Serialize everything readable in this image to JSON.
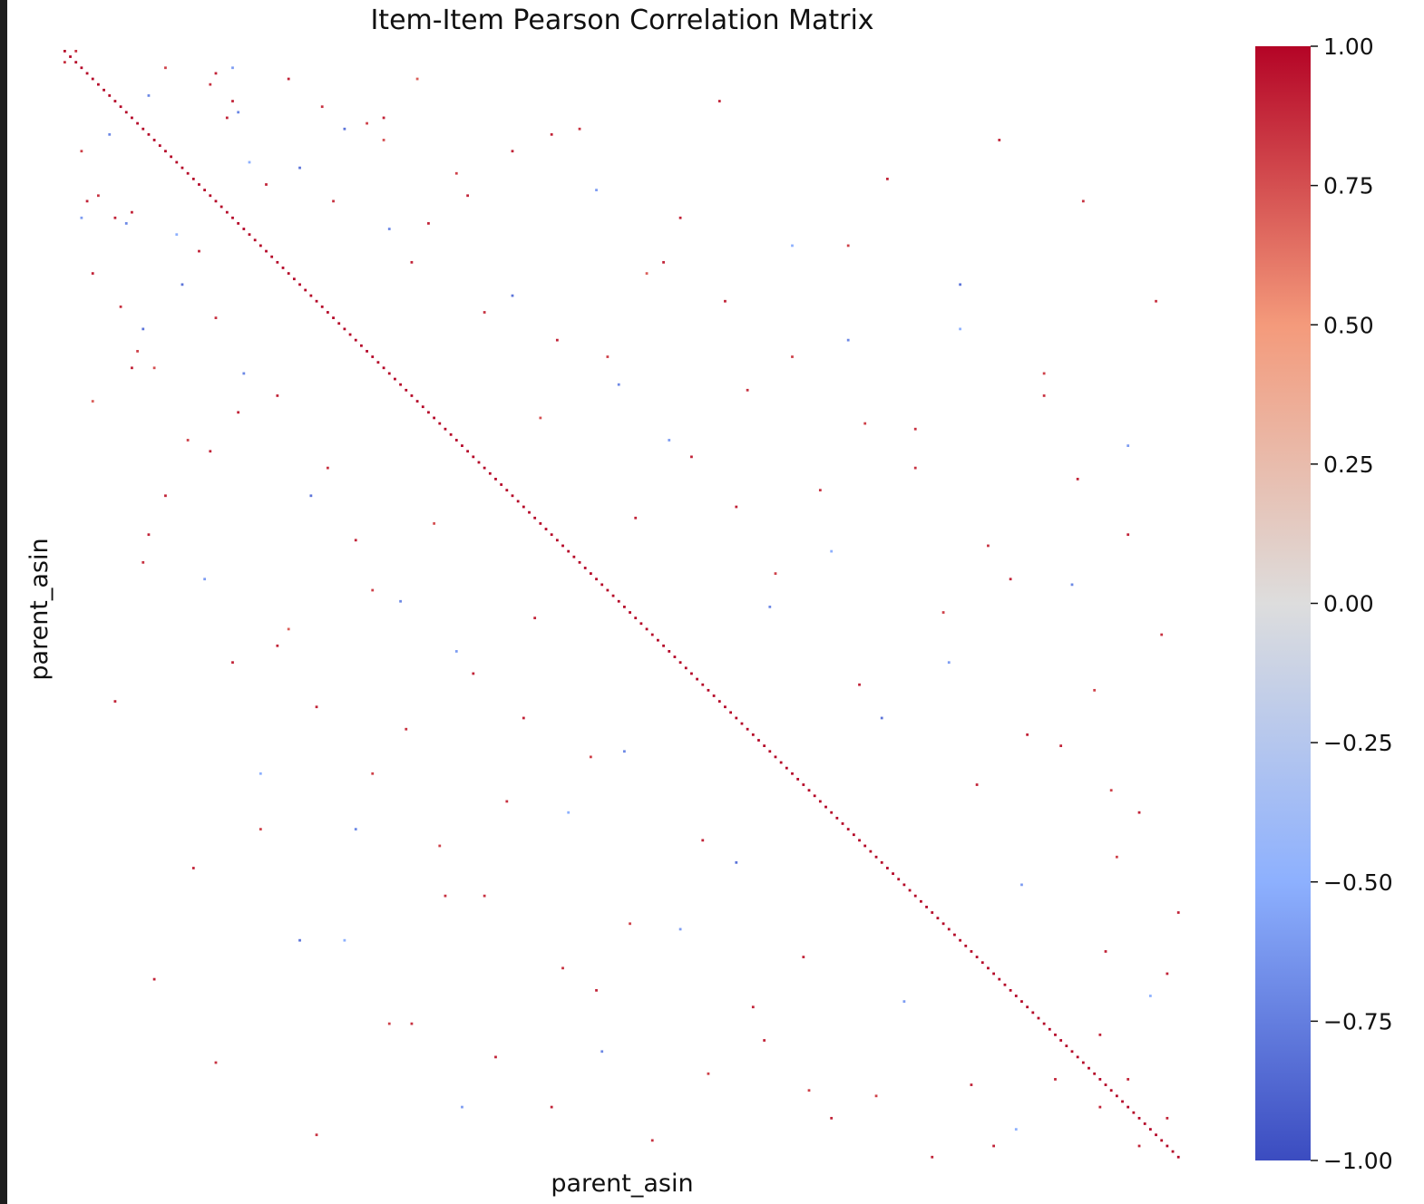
{
  "chart_data": {
    "type": "heatmap",
    "title": "Item-Item Pearson Correlation Matrix",
    "xlabel": "parent_asin",
    "ylabel": "parent_asin",
    "matrix_size": 200,
    "diagonal_value": 1.0,
    "colormap": "coolwarm",
    "colorbar": {
      "min": -1.0,
      "max": 1.0,
      "ticks": [
        1.0,
        0.75,
        0.5,
        0.25,
        0.0,
        -0.25,
        -0.5,
        -0.75,
        -1.0
      ],
      "tick_labels": [
        "1.00",
        "0.75",
        "0.50",
        "0.25",
        "0.00",
        "−0.25",
        "−0.50",
        "−0.75",
        "−1.00"
      ],
      "stops": [
        {
          "v": -1.0,
          "color": "#3b4cc0"
        },
        {
          "v": -0.5,
          "color": "#8db0fe"
        },
        {
          "v": 0.0,
          "color": "#dddddd"
        },
        {
          "v": 0.5,
          "color": "#f49a7b"
        },
        {
          "v": 1.0,
          "color": "#b40426"
        }
      ]
    },
    "nan_color": "#ffffff",
    "offdiag_sample": [
      [
        0,
        2,
        0.85
      ],
      [
        3,
        18,
        0.8
      ],
      [
        3,
        30,
        -0.6
      ],
      [
        5,
        40,
        0.9
      ],
      [
        5,
        63,
        0.7
      ],
      [
        8,
        15,
        -0.7
      ],
      [
        10,
        46,
        0.85
      ],
      [
        12,
        29,
        0.9
      ],
      [
        14,
        50,
        -0.8
      ],
      [
        16,
        57,
        0.75
      ],
      [
        18,
        80,
        0.9
      ],
      [
        20,
        33,
        -0.5
      ],
      [
        22,
        70,
        0.8
      ],
      [
        24,
        36,
        0.9
      ],
      [
        25,
        95,
        -0.6
      ],
      [
        27,
        48,
        0.85
      ],
      [
        30,
        110,
        0.9
      ],
      [
        32,
        58,
        -0.7
      ],
      [
        35,
        140,
        0.8
      ],
      [
        38,
        62,
        0.9
      ],
      [
        40,
        104,
        0.7
      ],
      [
        42,
        21,
        -0.8
      ],
      [
        45,
        118,
        0.9
      ],
      [
        47,
        75,
        0.85
      ],
      [
        50,
        160,
        -0.5
      ],
      [
        52,
        88,
        0.9
      ],
      [
        55,
        130,
        0.8
      ],
      [
        57,
        12,
        0.9
      ],
      [
        60,
        99,
        -0.7
      ],
      [
        62,
        175,
        0.85
      ],
      [
        65,
        31,
        0.9
      ],
      [
        67,
        143,
        0.8
      ],
      [
        70,
        108,
        -0.6
      ],
      [
        72,
        26,
        0.9
      ],
      [
        75,
        152,
        0.85
      ],
      [
        77,
        181,
        0.9
      ],
      [
        80,
        44,
        -0.8
      ],
      [
        82,
        120,
        0.9
      ],
      [
        85,
        66,
        0.75
      ],
      [
        87,
        190,
        0.9
      ],
      [
        90,
        137,
        -0.5
      ],
      [
        92,
        14,
        0.85
      ],
      [
        95,
        169,
        0.9
      ],
      [
        97,
        55,
        0.8
      ],
      [
        100,
        126,
        -0.7
      ],
      [
        102,
        84,
        0.9
      ],
      [
        105,
        196,
        0.85
      ],
      [
        107,
        38,
        0.9
      ],
      [
        110,
        158,
        -0.6
      ],
      [
        112,
        73,
        0.9
      ],
      [
        115,
        184,
        0.8
      ],
      [
        117,
        9,
        0.9
      ],
      [
        120,
        146,
        -0.8
      ],
      [
        122,
        61,
        0.85
      ],
      [
        125,
        178,
        0.9
      ],
      [
        127,
        94,
        0.8
      ],
      [
        130,
        35,
        -0.5
      ],
      [
        132,
        163,
        0.9
      ],
      [
        135,
        79,
        0.85
      ],
      [
        137,
        192,
        0.9
      ],
      [
        140,
        52,
        -0.7
      ],
      [
        142,
        114,
        0.9
      ],
      [
        145,
        188,
        0.8
      ],
      [
        147,
        23,
        0.9
      ],
      [
        150,
        171,
        -0.6
      ],
      [
        152,
        68,
        0.85
      ],
      [
        155,
        199,
        0.9
      ],
      [
        157,
        101,
        0.8
      ],
      [
        160,
        42,
        -0.8
      ],
      [
        162,
        186,
        0.9
      ],
      [
        165,
        89,
        0.85
      ],
      [
        167,
        16,
        0.9
      ],
      [
        170,
        194,
        -0.5
      ],
      [
        172,
        123,
        0.9
      ],
      [
        175,
        58,
        0.8
      ],
      [
        177,
        185,
        0.9
      ],
      [
        180,
        96,
        -0.7
      ],
      [
        182,
        27,
        0.85
      ],
      [
        185,
        190,
        0.9
      ],
      [
        187,
        133,
        0.8
      ],
      [
        190,
        71,
        -0.6
      ],
      [
        192,
        197,
        0.9
      ],
      [
        195,
        45,
        0.85
      ],
      [
        197,
        166,
        0.9
      ],
      [
        4,
        27,
        0.9
      ],
      [
        6,
        26,
        0.85
      ],
      [
        9,
        30,
        0.9
      ],
      [
        11,
        31,
        -0.7
      ],
      [
        13,
        54,
        0.8
      ],
      [
        15,
        87,
        0.9
      ]
    ]
  }
}
